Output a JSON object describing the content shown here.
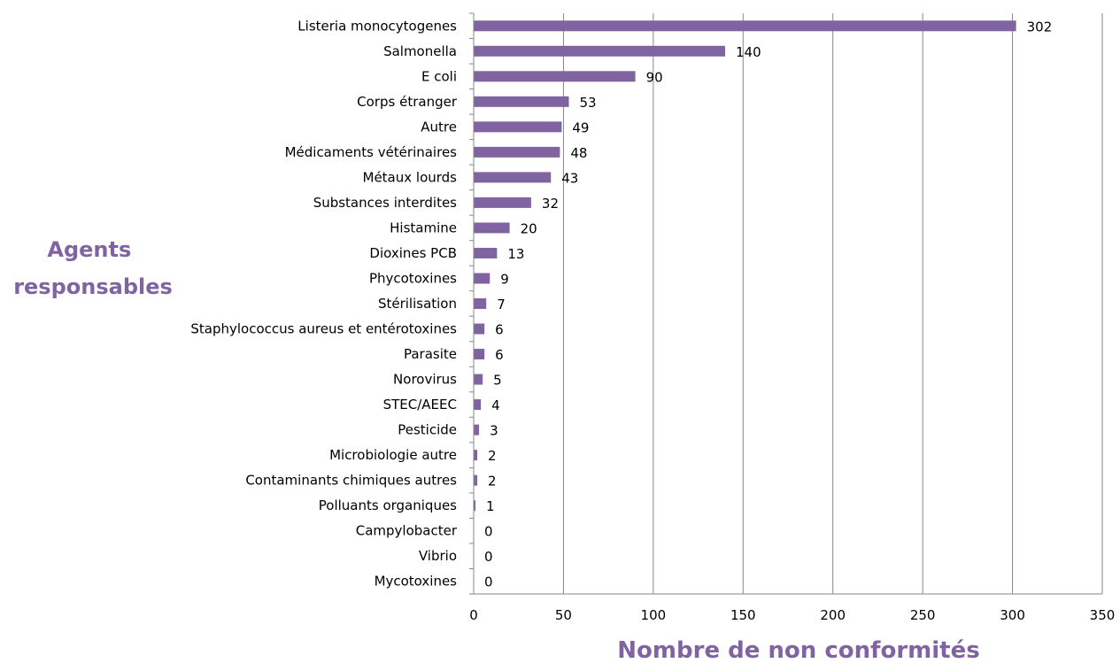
{
  "chart_data": {
    "type": "bar",
    "orientation": "horizontal",
    "categories": [
      "Listeria monocytogenes",
      "Salmonella",
      "E coli",
      "Corps étranger",
      "Autre",
      "Médicaments vétérinaires",
      "Métaux lourds",
      "Substances interdites",
      "Histamine",
      "Dioxines PCB",
      "Phycotoxines",
      "Stérilisation",
      "Staphylococcus aureus et entérotoxines",
      "Parasite",
      "Norovirus",
      "STEC/AEEC",
      "Pesticide",
      "Microbiologie autre",
      "Contaminants chimiques autres",
      "Polluants organiques",
      "Campylobacter",
      "Vibrio",
      "Mycotoxines"
    ],
    "values": [
      302,
      140,
      90,
      53,
      49,
      48,
      43,
      32,
      20,
      13,
      9,
      7,
      6,
      6,
      5,
      4,
      3,
      2,
      2,
      1,
      0,
      0,
      0
    ],
    "xlabel": "Nombre de non conformités",
    "ylabel_lines": [
      "Agents",
      "responsables"
    ],
    "xlim": [
      0,
      350
    ],
    "xticks": [
      0,
      50,
      100,
      150,
      200,
      250,
      300,
      350
    ],
    "grid": "vertical",
    "data_labels": true,
    "bar_color": "#8064a2",
    "axis_title_color": "#8064a2",
    "gridline_color": "#868686"
  }
}
